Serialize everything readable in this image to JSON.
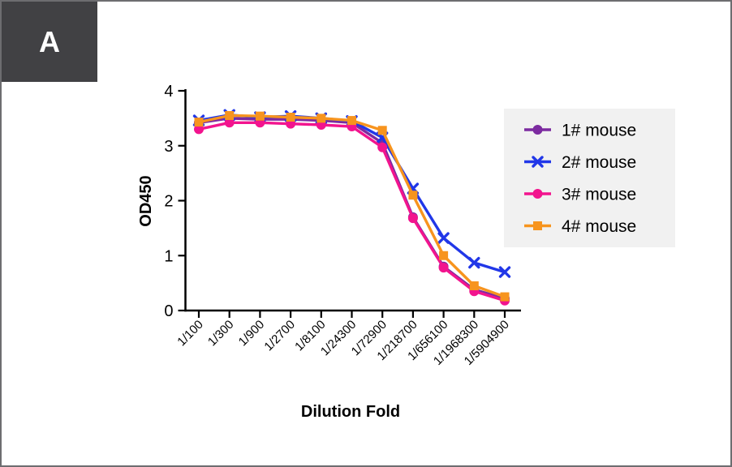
{
  "panel": {
    "label": "A"
  },
  "colors": {
    "panel_badge_bg": "#414144",
    "page_border": "#6d6d70",
    "axis": "#000000",
    "legend_bg": "#f1f1f1",
    "series_purple": "#7C2BA0",
    "series_blue": "#2137E8",
    "series_pink": "#F2148E",
    "series_orange": "#F7941E"
  },
  "chart_data": {
    "type": "line",
    "title": "",
    "xlabel": "Dilution Fold",
    "ylabel": "OD450",
    "ylim": [
      0,
      4
    ],
    "yticks": [
      0,
      1,
      2,
      3,
      4
    ],
    "grid": false,
    "legend_position": "right",
    "categories": [
      "1/100",
      "1/300",
      "1/900",
      "1/2700",
      "1/8100",
      "1/24300",
      "1/72900",
      "1/218700",
      "1/656100",
      "1/1968300",
      "1/5904900"
    ],
    "series": [
      {
        "name": "1# mouse",
        "color": "#7C2BA0",
        "marker": "circle",
        "values": [
          3.42,
          3.5,
          3.48,
          3.48,
          3.46,
          3.42,
          3.05,
          1.7,
          0.8,
          0.38,
          0.22
        ]
      },
      {
        "name": "2# mouse",
        "color": "#2137E8",
        "marker": "x",
        "values": [
          3.46,
          3.56,
          3.52,
          3.54,
          3.5,
          3.45,
          3.15,
          2.22,
          1.32,
          0.87,
          0.7
        ]
      },
      {
        "name": "3# mouse",
        "color": "#F2148E",
        "marker": "circle",
        "values": [
          3.3,
          3.42,
          3.42,
          3.4,
          3.38,
          3.35,
          2.97,
          1.68,
          0.78,
          0.35,
          0.18
        ]
      },
      {
        "name": "4# mouse",
        "color": "#F7941E",
        "marker": "square",
        "values": [
          3.43,
          3.55,
          3.54,
          3.52,
          3.5,
          3.46,
          3.28,
          2.1,
          1.0,
          0.45,
          0.25
        ]
      }
    ]
  }
}
